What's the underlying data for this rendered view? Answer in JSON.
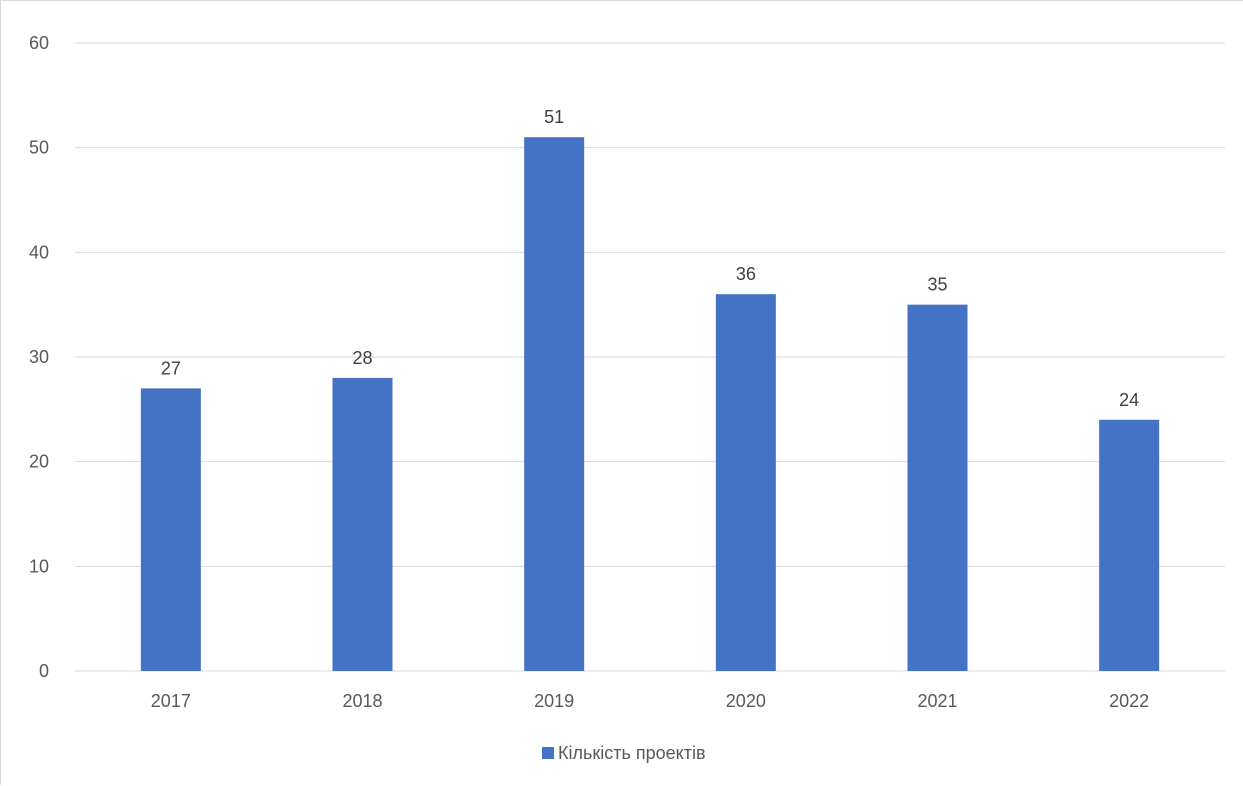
{
  "chart_data": {
    "type": "bar",
    "categories": [
      "2017",
      "2018",
      "2019",
      "2020",
      "2021",
      "2022"
    ],
    "series": [
      {
        "name": "Кількість проектів",
        "values": [
          27,
          28,
          51,
          36,
          35,
          24
        ],
        "color": "#4472c4"
      }
    ],
    "data_labels": [
      "27",
      "28",
      "51",
      "36",
      "35",
      "24"
    ],
    "ylim": [
      0,
      60
    ],
    "yticks": [
      0,
      10,
      20,
      30,
      40,
      50,
      60
    ],
    "ytick_labels": [
      "0",
      "10",
      "20",
      "30",
      "40",
      "50",
      "60"
    ],
    "grid": true,
    "legend_position": "bottom",
    "colors": {
      "bar": "#4472c4",
      "grid": "#d9d9d9",
      "axis_text": "#595959",
      "label_text": "#404040"
    }
  }
}
